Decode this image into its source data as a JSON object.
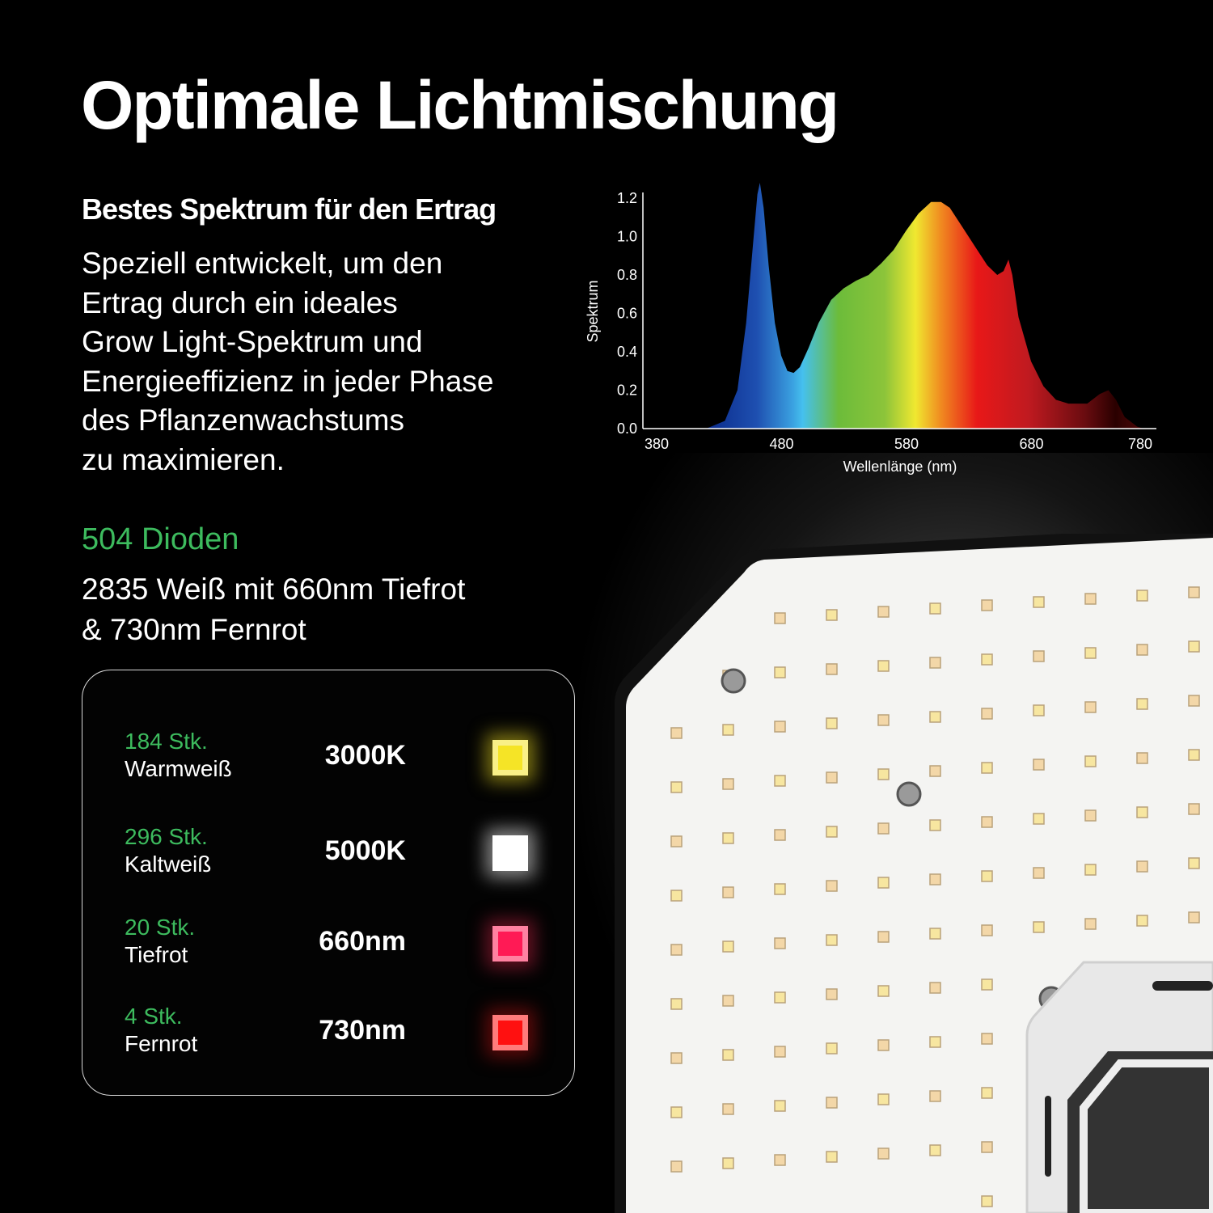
{
  "title": "Optimale Lichtmischung",
  "subtitle": "Bestes Spektrum für den Ertrag",
  "description": [
    "Speziell entwickelt, um den",
    "Ertrag durch ein ideales",
    "Grow Light-Spektrum und",
    "Energieeffizienz in jeder Phase",
    "des Pflanzenwachstums",
    "zu maximieren."
  ],
  "diodes_total": "504 Dioden",
  "diodes_desc": [
    "2835 Weiß mit 660nm Tiefrot",
    "& 730nm Fernrot"
  ],
  "led_types": [
    {
      "count": "184 Stk.",
      "name": "Warmweiß",
      "value": "3000K",
      "color": "#f5e426",
      "glow": "#e8d820"
    },
    {
      "count": "296 Stk.",
      "name": "Kaltweiß",
      "value": "5000K",
      "color": "#ffffff",
      "glow": "#ffffff"
    },
    {
      "count": "20 Stk.",
      "name": "Tiefrot",
      "value": "660nm",
      "color": "#ff1a55",
      "glow": "#c02040"
    },
    {
      "count": "4 Stk.",
      "name": "Fernrot",
      "value": "730nm",
      "color": "#ff1010",
      "glow": "#b01010"
    }
  ],
  "colors": {
    "accent_green": "#3dbb5e",
    "background": "#000000"
  },
  "chart_data": {
    "type": "area",
    "title": "",
    "xlabel": "Wellenlänge (nm)",
    "ylabel": "Spektrum",
    "xlim": [
      380,
      780
    ],
    "ylim": [
      0,
      1.2
    ],
    "xticks": [
      "380",
      "480",
      "580",
      "680",
      "780"
    ],
    "yticks": [
      "0.0",
      "0.2",
      "0.4",
      "0.6",
      "0.8",
      "1.0",
      "1.2"
    ],
    "x": [
      430,
      445,
      455,
      462,
      468,
      471,
      473,
      476,
      480,
      485,
      490,
      495,
      500,
      505,
      512,
      520,
      530,
      540,
      550,
      560,
      570,
      580,
      590,
      600,
      610,
      618,
      625,
      635,
      645,
      655,
      663,
      668,
      672,
      675,
      680,
      690,
      700,
      710,
      720,
      735,
      745,
      752,
      758,
      765,
      775,
      780
    ],
    "y": [
      0,
      0.04,
      0.2,
      0.55,
      1.0,
      1.22,
      1.28,
      1.15,
      0.85,
      0.55,
      0.38,
      0.3,
      0.29,
      0.32,
      0.42,
      0.55,
      0.67,
      0.73,
      0.77,
      0.8,
      0.86,
      0.93,
      1.03,
      1.12,
      1.18,
      1.18,
      1.15,
      1.05,
      0.95,
      0.85,
      0.8,
      0.82,
      0.88,
      0.8,
      0.58,
      0.35,
      0.22,
      0.15,
      0.13,
      0.13,
      0.18,
      0.2,
      0.15,
      0.06,
      0.01,
      0
    ]
  }
}
